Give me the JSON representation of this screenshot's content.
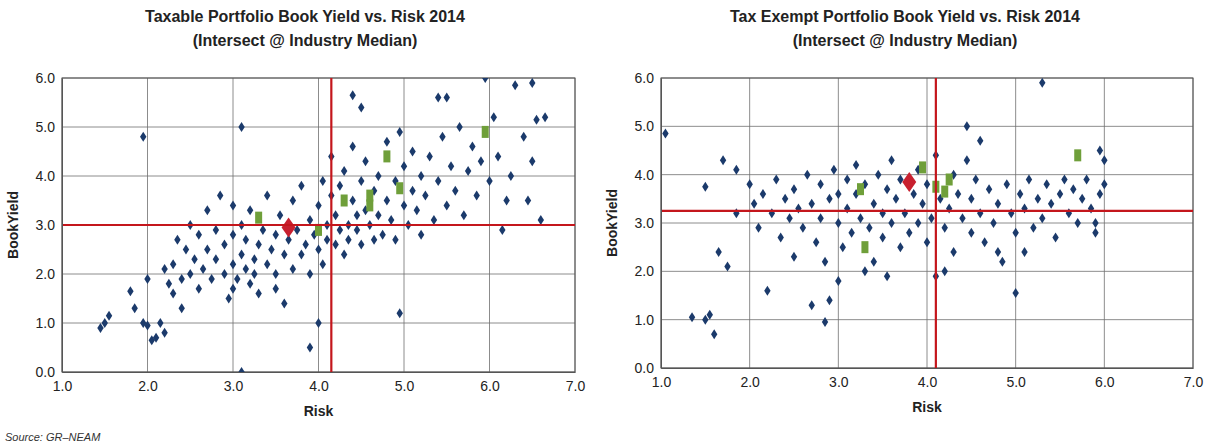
{
  "chart_data": [
    {
      "type": "scatter",
      "title": "Taxable Portfolio Book Yield vs. Risk 2014",
      "subtitle": "(Intersect @ Industry Median)",
      "x_label": "Risk",
      "y_label": "BookYield",
      "xlim": [
        1,
        7
      ],
      "ylim": [
        0,
        6
      ],
      "xticks": [
        {
          "value": 1,
          "label": "1.0"
        },
        {
          "value": 2,
          "label": "2.0"
        },
        {
          "value": 3,
          "label": "3.0"
        },
        {
          "value": 4,
          "label": "4.0"
        },
        {
          "value": 5,
          "label": "5.0"
        },
        {
          "value": 6,
          "label": "6.0"
        },
        {
          "value": 7,
          "label": "7.0"
        }
      ],
      "yticks": [
        {
          "value": 0,
          "label": "0.0"
        },
        {
          "value": 1,
          "label": "1.0"
        },
        {
          "value": 2,
          "label": "2.0"
        },
        {
          "value": 3,
          "label": "3.0"
        },
        {
          "value": 4,
          "label": "4.0"
        },
        {
          "value": 5,
          "label": "5.0"
        },
        {
          "value": 6,
          "label": "6.0"
        }
      ],
      "grid": true,
      "median_x": 4.15,
      "median_y": 3.0,
      "series": [
        {
          "color": "#1b3a6b",
          "marker": "diamond",
          "x": [
            1.45,
            1.5,
            1.55,
            1.8,
            1.85,
            1.95,
            1.95,
            2.0,
            2.05,
            2.1,
            2.15,
            2.2,
            2.25,
            2.3,
            3.1,
            3.1,
            3.9,
            4.0,
            4.95,
            4.4,
            4.5,
            5.4,
            5.5,
            5.95,
            6.3,
            6.5,
            6.55,
            6.65,
            6.6,
            6.45,
            6.15,
            6.2,
            2.3,
            2.35,
            2.4,
            2.45,
            2.5,
            2.5,
            2.55,
            2.6,
            2.6,
            2.65,
            2.7,
            2.7,
            2.75,
            2.8,
            2.8,
            2.85,
            2.9,
            2.9,
            2.95,
            3.0,
            3.0,
            3.0,
            3.05,
            3.1,
            3.1,
            3.15,
            3.15,
            3.2,
            3.2,
            3.25,
            3.25,
            3.3,
            3.3,
            3.35,
            3.4,
            3.4,
            3.45,
            3.5,
            3.5,
            3.55,
            3.6,
            3.6,
            3.65,
            3.7,
            3.7,
            3.75,
            3.8,
            3.8,
            3.85,
            3.9,
            3.9,
            3.95,
            4.0,
            4.0,
            4.05,
            4.05,
            4.1,
            4.1,
            4.15,
            4.15,
            4.2,
            4.2,
            4.25,
            4.25,
            4.3,
            4.3,
            4.35,
            4.35,
            4.4,
            4.4,
            4.45,
            4.45,
            4.5,
            4.5,
            4.55,
            4.55,
            4.6,
            4.65,
            4.65,
            4.7,
            4.7,
            4.75,
            4.8,
            4.8,
            4.85,
            4.9,
            4.9,
            4.95,
            5.0,
            5.0,
            5.05,
            5.1,
            5.1,
            5.15,
            5.2,
            5.2,
            5.25,
            5.3,
            5.35,
            5.4,
            5.45,
            5.5,
            5.55,
            5.6,
            5.65,
            5.7,
            5.75,
            5.8,
            5.85,
            5.9,
            6.0,
            6.05,
            6.1,
            6.25,
            6.4,
            6.5,
            3.5,
            3.0,
            2.2,
            2.0,
            2.4
          ],
          "values": [
            0.9,
            1.0,
            1.15,
            1.65,
            1.3,
            4.8,
            1.0,
            0.95,
            0.65,
            0.7,
            1.0,
            0.8,
            1.8,
            1.6,
            5.0,
            0.0,
            0.5,
            1.0,
            1.2,
            5.65,
            5.4,
            5.6,
            5.6,
            6.0,
            5.85,
            5.9,
            5.15,
            5.2,
            3.1,
            3.5,
            2.9,
            3.5,
            2.2,
            2.7,
            1.9,
            2.5,
            2.0,
            3.0,
            2.3,
            1.7,
            2.8,
            2.1,
            2.5,
            3.3,
            1.9,
            2.3,
            2.9,
            3.6,
            2.0,
            2.6,
            1.5,
            2.2,
            2.8,
            3.4,
            1.9,
            2.4,
            3.0,
            2.1,
            2.7,
            1.8,
            3.3,
            2.3,
            2.0,
            2.6,
            1.6,
            2.9,
            2.2,
            3.6,
            2.5,
            2.0,
            2.8,
            3.2,
            2.4,
            1.4,
            2.7,
            2.1,
            3.5,
            2.9,
            2.4,
            3.8,
            2.6,
            3.1,
            2.0,
            2.8,
            3.4,
            2.5,
            3.9,
            2.2,
            3.0,
            2.7,
            3.6,
            4.4,
            2.6,
            3.2,
            2.9,
            3.8,
            2.4,
            4.1,
            3.0,
            2.7,
            3.5,
            4.6,
            2.9,
            3.2,
            2.6,
            3.9,
            3.3,
            4.3,
            3.0,
            2.7,
            3.7,
            4.0,
            3.2,
            2.8,
            3.5,
            4.7,
            3.1,
            3.9,
            2.7,
            4.9,
            3.4,
            4.2,
            3.0,
            3.7,
            4.5,
            3.3,
            4.0,
            2.8,
            3.6,
            4.4,
            3.1,
            3.9,
            4.8,
            3.4,
            4.2,
            3.7,
            5.0,
            3.2,
            4.1,
            4.6,
            3.6,
            4.3,
            3.9,
            5.2,
            4.4,
            4.0,
            4.8,
            4.3,
            1.7,
            1.7,
            2.1,
            1.9,
            1.3
          ]
        },
        {
          "color": "#6f9f3a",
          "marker": "square",
          "x": [
            3.3,
            4.0,
            4.3,
            4.6,
            4.6,
            4.8,
            4.95,
            5.95
          ],
          "values": [
            3.15,
            2.9,
            3.5,
            3.4,
            3.6,
            4.4,
            3.75,
            4.9
          ]
        },
        {
          "color": "#c8202f",
          "marker": "diamond",
          "x": [
            3.65
          ],
          "values": [
            2.95
          ]
        }
      ]
    },
    {
      "type": "scatter",
      "title": "Tax Exempt Portfolio Book Yield vs. Risk 2014",
      "subtitle": "(Intersect @ Industry Median)",
      "x_label": "Risk",
      "y_label": "BookYield",
      "xlim": [
        1,
        7
      ],
      "ylim": [
        0,
        6
      ],
      "xticks": [
        {
          "value": 1,
          "label": "1.0"
        },
        {
          "value": 2,
          "label": "2.0"
        },
        {
          "value": 3,
          "label": "3.0"
        },
        {
          "value": 4,
          "label": "4.0"
        },
        {
          "value": 5,
          "label": "5.0"
        },
        {
          "value": 6,
          "label": "6.0"
        },
        {
          "value": 7,
          "label": "7.0"
        }
      ],
      "yticks": [
        {
          "value": 0,
          "label": "0.0"
        },
        {
          "value": 1,
          "label": "1.0"
        },
        {
          "value": 2,
          "label": "2.0"
        },
        {
          "value": 3,
          "label": "3.0"
        },
        {
          "value": 4,
          "label": "4.0"
        },
        {
          "value": 5,
          "label": "5.0"
        },
        {
          "value": 6,
          "label": "6.0"
        }
      ],
      "grid": true,
      "median_x": 4.1,
      "median_y": 3.25,
      "series": [
        {
          "color": "#1b3a6b",
          "marker": "diamond",
          "x": [
            1.05,
            1.35,
            1.5,
            1.55,
            1.6,
            1.5,
            1.65,
            1.7,
            1.75,
            1.85,
            1.85,
            5.3,
            5.0,
            2.85,
            2.7,
            4.45,
            5.95,
            6.0,
            5.9,
            2.0,
            2.05,
            2.1,
            2.15,
            2.2,
            2.25,
            2.3,
            2.35,
            2.4,
            2.45,
            2.5,
            2.5,
            2.55,
            2.6,
            2.65,
            2.7,
            2.75,
            2.8,
            2.8,
            2.85,
            2.9,
            2.95,
            3.0,
            3.0,
            3.05,
            3.1,
            3.1,
            3.15,
            3.2,
            3.2,
            3.25,
            3.3,
            3.35,
            3.4,
            3.4,
            3.45,
            3.5,
            3.5,
            3.55,
            3.6,
            3.6,
            3.65,
            3.7,
            3.7,
            3.75,
            3.8,
            3.85,
            3.9,
            3.9,
            3.95,
            4.0,
            4.0,
            4.05,
            4.1,
            4.15,
            4.2,
            4.25,
            4.3,
            4.3,
            4.35,
            4.4,
            4.45,
            4.5,
            4.5,
            4.55,
            4.6,
            4.65,
            4.7,
            4.75,
            4.8,
            4.85,
            4.9,
            4.95,
            5.0,
            5.05,
            5.1,
            5.15,
            5.2,
            5.25,
            5.3,
            5.35,
            5.4,
            5.45,
            5.5,
            5.55,
            5.6,
            5.65,
            5.7,
            5.75,
            5.8,
            5.85,
            5.9,
            5.95,
            6.0,
            4.2,
            3.55,
            3.0,
            2.9,
            4.6,
            4.1,
            5.1,
            4.8,
            3.3
          ],
          "values": [
            4.85,
            1.05,
            1.0,
            1.1,
            0.7,
            3.75,
            2.4,
            4.3,
            2.1,
            3.2,
            4.1,
            5.9,
            1.55,
            0.95,
            1.3,
            5.0,
            4.5,
            4.3,
            3.0,
            3.8,
            3.4,
            2.9,
            3.6,
            1.6,
            3.2,
            3.9,
            2.7,
            3.5,
            3.1,
            2.3,
            3.7,
            3.3,
            2.9,
            4.0,
            3.4,
            2.6,
            3.8,
            3.1,
            2.2,
            3.5,
            4.1,
            3.0,
            3.6,
            2.5,
            3.9,
            3.3,
            2.8,
            3.6,
            4.2,
            3.1,
            3.8,
            2.9,
            3.4,
            2.2,
            4.0,
            3.2,
            2.7,
            3.7,
            3.0,
            4.3,
            3.5,
            2.5,
            3.9,
            3.2,
            2.8,
            3.6,
            4.1,
            3.0,
            3.4,
            2.6,
            3.8,
            3.1,
            4.4,
            3.5,
            2.9,
            3.3,
            4.0,
            2.4,
            3.6,
            3.1,
            4.3,
            2.8,
            3.5,
            3.9,
            3.2,
            2.6,
            3.7,
            3.0,
            3.4,
            2.2,
            3.8,
            3.2,
            2.8,
            3.6,
            3.3,
            3.9,
            2.9,
            3.5,
            3.1,
            3.8,
            3.4,
            2.7,
            3.6,
            3.9,
            3.2,
            3.7,
            3.0,
            3.5,
            3.9,
            3.3,
            2.8,
            3.6,
            3.8,
            2.0,
            1.9,
            1.8,
            1.4,
            4.7,
            1.9,
            2.4,
            2.4,
            2.0
          ]
        },
        {
          "color": "#6f9f3a",
          "marker": "square",
          "x": [
            3.25,
            3.3,
            3.95,
            4.1,
            4.2,
            4.25,
            5.7
          ],
          "values": [
            3.7,
            2.5,
            4.15,
            3.75,
            3.65,
            3.9,
            4.4
          ]
        },
        {
          "color": "#c8202f",
          "marker": "diamond",
          "x": [
            3.8
          ],
          "values": [
            3.85
          ]
        }
      ]
    }
  ],
  "source": "Source: GR–NEAM"
}
